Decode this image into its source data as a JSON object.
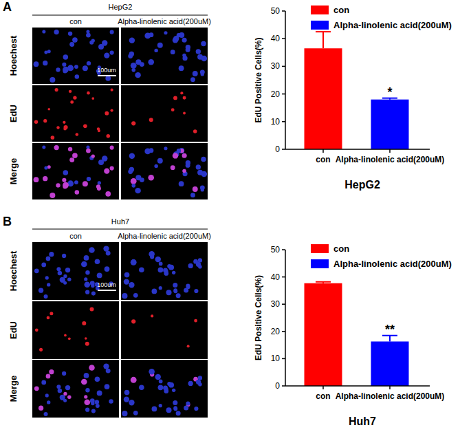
{
  "figure": {
    "panels": [
      {
        "label": "A",
        "cell_line": "HepG2",
        "columns": [
          "con",
          "Alpha-linolenic acid(200uM)"
        ],
        "rows": [
          "Hoechest",
          "EdU",
          "Merge"
        ],
        "scale_bar": "100um"
      },
      {
        "label": "B",
        "cell_line": "Huh7",
        "columns": [
          "con",
          "Alpha-linolenic acid(200uM)"
        ],
        "rows": [
          "Hoechest",
          "EdU",
          "Merge"
        ],
        "scale_bar": "100um"
      }
    ]
  },
  "chart_data": [
    {
      "type": "bar",
      "categories": [
        "con",
        "Alpha-linolenic acid(200uM)"
      ],
      "values": [
        36.5,
        18.0
      ],
      "errors": [
        6.0,
        0.5
      ],
      "colors": [
        "#ff0000",
        "#0000ff"
      ],
      "ylim": [
        0,
        50
      ],
      "yticks": [
        0,
        10,
        20,
        30,
        40,
        50
      ],
      "y_label": "EdU Positive Cells(%)",
      "x_label": "HepG2",
      "legend": "top",
      "annotations": [
        {
          "category": "Alpha-linolenic acid(200uM)",
          "text": "*"
        }
      ]
    },
    {
      "type": "bar",
      "categories": [
        "con",
        "Alpha-linolenic acid(200uM)"
      ],
      "values": [
        37.7,
        16.3
      ],
      "errors": [
        0.5,
        2.2
      ],
      "colors": [
        "#ff0000",
        "#0000ff"
      ],
      "ylim": [
        0,
        50
      ],
      "yticks": [
        0,
        10,
        20,
        30,
        40,
        50
      ],
      "y_label": "EdU Positive Cells(%)",
      "x_label": "Huh7",
      "legend": "top",
      "annotations": [
        {
          "category": "Alpha-linolenic acid(200uM)",
          "text": "**"
        }
      ]
    }
  ]
}
